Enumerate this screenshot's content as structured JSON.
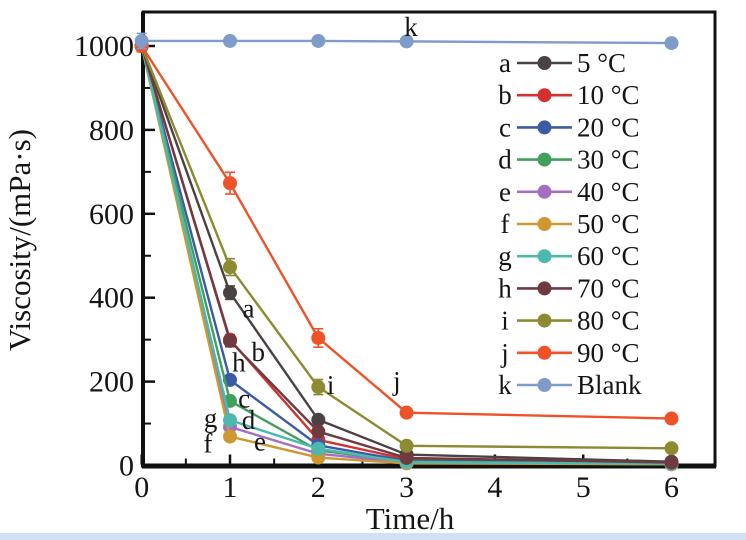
{
  "figure": {
    "background": "#ffffff",
    "bottom_strip_color": "#cfe1f2",
    "axis_color": "#111111"
  },
  "chart_data": {
    "type": "line",
    "title": "",
    "xlabel": "Time/h",
    "ylabel": "Viscosity/(mPa·s)",
    "x": [
      0,
      1,
      2,
      3,
      6
    ],
    "x_ticks": [
      0,
      1,
      2,
      3,
      4,
      5,
      6
    ],
    "y_ticks": [
      0,
      200,
      400,
      600,
      800,
      1000
    ],
    "x_minor_step": 0.5,
    "y_minor_step": 100,
    "xlim": [
      0,
      6.5
    ],
    "ylim": [
      0,
      1080
    ],
    "grid": false,
    "legend_position": "upper-right-inside",
    "series": [
      {
        "key": "a",
        "label": "5 °C",
        "color": "#4a4243",
        "values": [
          1000,
          412,
          109,
          26,
          9
        ],
        "err": [
          12,
          16,
          8,
          4,
          0
        ]
      },
      {
        "key": "b",
        "label": "10 °C",
        "color": "#d2312e",
        "values": [
          1000,
          300,
          61,
          15,
          6
        ],
        "err": [
          12,
          12,
          6,
          4,
          0
        ]
      },
      {
        "key": "c",
        "label": "20 °C",
        "color": "#3c5ba5",
        "values": [
          1000,
          204,
          48,
          11,
          5
        ],
        "err": [
          10,
          10,
          5,
          3,
          0
        ]
      },
      {
        "key": "d",
        "label": "30 °C",
        "color": "#41a05c",
        "values": [
          1000,
          154,
          36,
          9,
          4
        ],
        "err": [
          10,
          8,
          5,
          3,
          0
        ]
      },
      {
        "key": "e",
        "label": "40 °C",
        "color": "#a36fc4",
        "values": [
          1000,
          92,
          28,
          7,
          3
        ],
        "err": [
          8,
          8,
          4,
          2,
          0
        ]
      },
      {
        "key": "f",
        "label": "50 °C",
        "color": "#cf9732",
        "values": [
          1000,
          69,
          19,
          5,
          3
        ],
        "err": [
          8,
          8,
          4,
          2,
          0
        ]
      },
      {
        "key": "g",
        "label": "60 °C",
        "color": "#4cb9ae",
        "values": [
          1000,
          108,
          40,
          8,
          4
        ],
        "err": [
          8,
          8,
          4,
          2,
          0
        ]
      },
      {
        "key": "h",
        "label": "70 °C",
        "color": "#6f3b40",
        "values": [
          1000,
          297,
          81,
          18,
          7
        ],
        "err": [
          10,
          14,
          6,
          3,
          0
        ]
      },
      {
        "key": "i",
        "label": "80 °C",
        "color": "#8d8b31",
        "values": [
          1000,
          473,
          187,
          47,
          41
        ],
        "err": [
          12,
          20,
          18,
          6,
          4
        ]
      },
      {
        "key": "j",
        "label": "90 °C",
        "color": "#ef5228",
        "values": [
          1000,
          673,
          304,
          126,
          112
        ],
        "err": [
          14,
          26,
          22,
          7,
          5
        ]
      },
      {
        "key": "k",
        "label": "Blank",
        "color": "#7f9bca",
        "values": [
          1012,
          1012,
          1012,
          1011,
          1007
        ],
        "err": [
          18,
          6,
          5,
          5,
          4
        ]
      }
    ],
    "annotations": [
      {
        "text": "a",
        "x": 1.21,
        "y": 374
      },
      {
        "text": "b",
        "x": 1.32,
        "y": 270
      },
      {
        "text": "h",
        "x": 1.1,
        "y": 245
      },
      {
        "text": "c",
        "x": 1.16,
        "y": 160
      },
      {
        "text": "g",
        "x": 0.78,
        "y": 113
      },
      {
        "text": "d",
        "x": 1.21,
        "y": 108
      },
      {
        "text": "f",
        "x": 0.75,
        "y": 52
      },
      {
        "text": "e",
        "x": 1.34,
        "y": 57
      },
      {
        "text": "i",
        "x": 2.14,
        "y": 192
      },
      {
        "text": "j",
        "x": 2.89,
        "y": 202
      },
      {
        "text": "k",
        "x": 3.05,
        "y": 1045
      }
    ]
  }
}
